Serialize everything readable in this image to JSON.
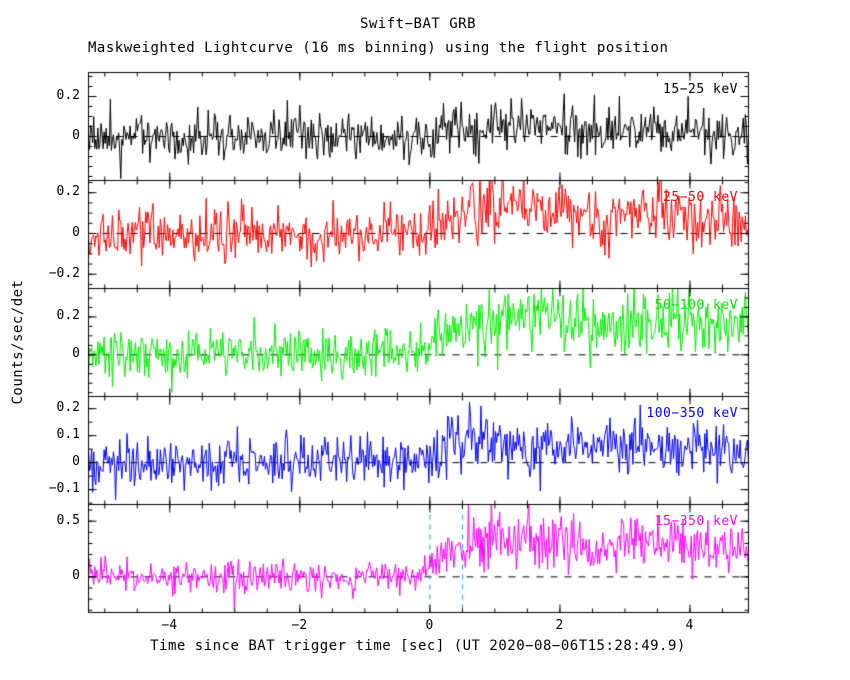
{
  "header": {
    "title": "Swift−BAT GRB",
    "subtitle": "Maskweighted Lightcurve (16 ms binning) using the flight position"
  },
  "chart_data": {
    "type": "line",
    "title": "Swift−BAT GRB",
    "subtitle": "Maskweighted Lightcurve (16 ms binning) using the flight position",
    "xlabel": "Time since BAT trigger time [sec] (UT 2020−08−06T15:28:49.9)",
    "ylabel": "Counts/sec/det",
    "xlim": [
      -5.25,
      4.9
    ],
    "xticks": [
      -4,
      -2,
      0,
      2,
      4
    ],
    "x_minor_step": 0.5,
    "bin_sec": 0.016,
    "grid": false,
    "legend_position": "in-panel-top-right",
    "trigger_lines_x": [
      0,
      0.5
    ],
    "trigger_line_color": "#00b3b3",
    "zero_line_style": "dashed-black",
    "panels": [
      {
        "label": "15−25 keV",
        "color": "#000000",
        "ylim": [
          -0.22,
          0.32
        ],
        "yticks": [
          0,
          0.2
        ],
        "y_minor_step": 0.05,
        "noise_sigma": 0.062,
        "seed": 1001,
        "mean_profile": [
          [
            -5.25,
            0.0
          ],
          [
            -0.2,
            0.0
          ],
          [
            0.3,
            0.02
          ],
          [
            0.9,
            0.04
          ],
          [
            1.6,
            0.05
          ],
          [
            2.4,
            0.03
          ],
          [
            3.2,
            0.03
          ],
          [
            4.0,
            0.02
          ],
          [
            4.9,
            0.01
          ]
        ]
      },
      {
        "label": "25−50 keV",
        "color": "#ff0000",
        "ylim": [
          -0.27,
          0.26
        ],
        "yticks": [
          -0.2,
          0,
          0.2
        ],
        "y_minor_step": 0.05,
        "noise_sigma": 0.066,
        "seed": 2027,
        "mean_profile": [
          [
            -5.25,
            0.0
          ],
          [
            -0.25,
            0.0
          ],
          [
            0.15,
            0.06
          ],
          [
            0.6,
            0.09
          ],
          [
            1.1,
            0.13
          ],
          [
            1.7,
            0.13
          ],
          [
            2.2,
            0.09
          ],
          [
            2.7,
            0.04
          ],
          [
            3.05,
            0.1
          ],
          [
            3.4,
            0.12
          ],
          [
            4.1,
            0.06
          ],
          [
            4.9,
            0.05
          ]
        ]
      },
      {
        "label": "50−100 keV",
        "color": "#00ee00",
        "ylim": [
          -0.22,
          0.35
        ],
        "yticks": [
          0,
          0.2
        ],
        "y_minor_step": 0.05,
        "noise_sigma": 0.062,
        "seed": 3055,
        "mean_profile": [
          [
            -5.25,
            0.0
          ],
          [
            -0.3,
            0.01
          ],
          [
            0.2,
            0.12
          ],
          [
            0.8,
            0.18
          ],
          [
            1.3,
            0.21
          ],
          [
            2.1,
            0.19
          ],
          [
            2.7,
            0.13
          ],
          [
            3.05,
            0.19
          ],
          [
            3.5,
            0.21
          ],
          [
            4.2,
            0.15
          ],
          [
            4.9,
            0.13
          ]
        ]
      },
      {
        "label": "100−350 keV",
        "color": "#0000ff",
        "ylim": [
          -0.155,
          0.245
        ],
        "yticks": [
          -0.1,
          0,
          0.1,
          0.2
        ],
        "y_minor_step": 0.05,
        "noise_sigma": 0.048,
        "seed": 4099,
        "mean_profile": [
          [
            -5.25,
            0.0
          ],
          [
            -0.1,
            0.01
          ],
          [
            0.4,
            0.06
          ],
          [
            1.0,
            0.07
          ],
          [
            1.8,
            0.06
          ],
          [
            2.5,
            0.05
          ],
          [
            3.1,
            0.07
          ],
          [
            3.8,
            0.05
          ],
          [
            4.9,
            0.04
          ]
        ]
      },
      {
        "label": "15−350 keV",
        "color": "#ff00ff",
        "ylim": [
          -0.32,
          0.65
        ],
        "yticks": [
          0,
          0.5
        ],
        "y_minor_step": 0.1,
        "noise_sigma": 0.075,
        "seed": 5151,
        "mean_profile": [
          [
            -5.25,
            0.0
          ],
          [
            -0.25,
            0.01
          ],
          [
            0.2,
            0.22
          ],
          [
            0.8,
            0.3
          ],
          [
            1.4,
            0.33
          ],
          [
            2.1,
            0.29
          ],
          [
            2.7,
            0.21
          ],
          [
            3.05,
            0.3
          ],
          [
            3.6,
            0.32
          ],
          [
            4.2,
            0.24
          ],
          [
            4.9,
            0.22
          ]
        ]
      }
    ]
  }
}
